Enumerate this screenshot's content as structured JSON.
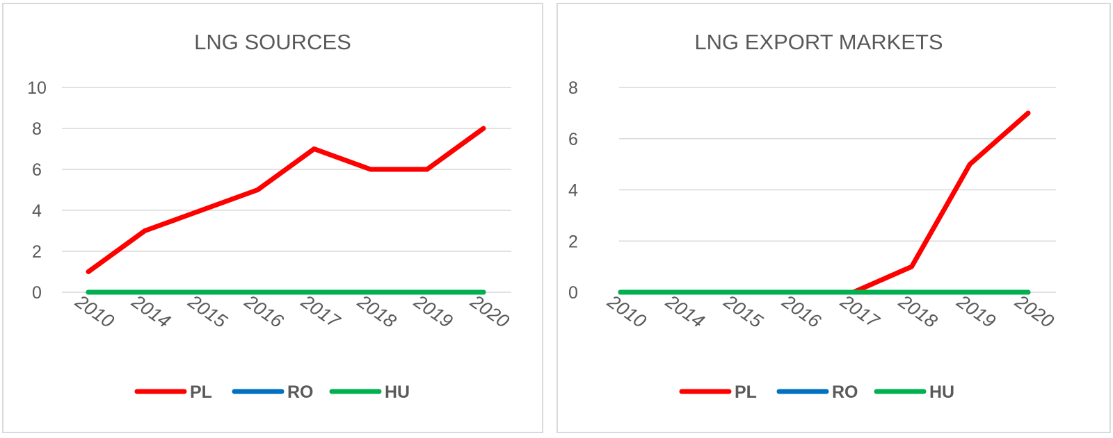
{
  "chart_data": [
    {
      "type": "line",
      "title": "LNG SOURCES",
      "categories": [
        "2010",
        "2014",
        "2015",
        "2016",
        "2017",
        "2018",
        "2019",
        "2020"
      ],
      "ylim": [
        0,
        10
      ],
      "yticks": [
        0,
        2,
        4,
        6,
        8,
        10
      ],
      "grid": true,
      "legend_position": "bottom",
      "series": [
        {
          "name": "PL",
          "color": "#ff0000",
          "values": [
            1,
            3,
            4,
            5,
            7,
            6,
            6,
            8
          ]
        },
        {
          "name": "RO",
          "color": "#0070c0",
          "values": [
            0,
            0,
            0,
            0,
            0,
            0,
            0,
            0
          ]
        },
        {
          "name": "HU",
          "color": "#00b050",
          "values": [
            0,
            0,
            0,
            0,
            0,
            0,
            0,
            0
          ]
        }
      ]
    },
    {
      "type": "line",
      "title": "LNG EXPORT MARKETS",
      "categories": [
        "2010",
        "2014",
        "2015",
        "2016",
        "2017",
        "2018",
        "2019",
        "2020"
      ],
      "ylim": [
        0,
        8
      ],
      "yticks": [
        0,
        2,
        4,
        6,
        8
      ],
      "grid": true,
      "legend_position": "bottom",
      "series": [
        {
          "name": "PL",
          "color": "#ff0000",
          "values": [
            0,
            0,
            0,
            0,
            0,
            1,
            5,
            7
          ]
        },
        {
          "name": "RO",
          "color": "#0070c0",
          "values": [
            0,
            0,
            0,
            0,
            0,
            0,
            0,
            0
          ]
        },
        {
          "name": "HU",
          "color": "#00b050",
          "values": [
            0,
            0,
            0,
            0,
            0,
            0,
            0,
            0
          ]
        }
      ]
    }
  ]
}
